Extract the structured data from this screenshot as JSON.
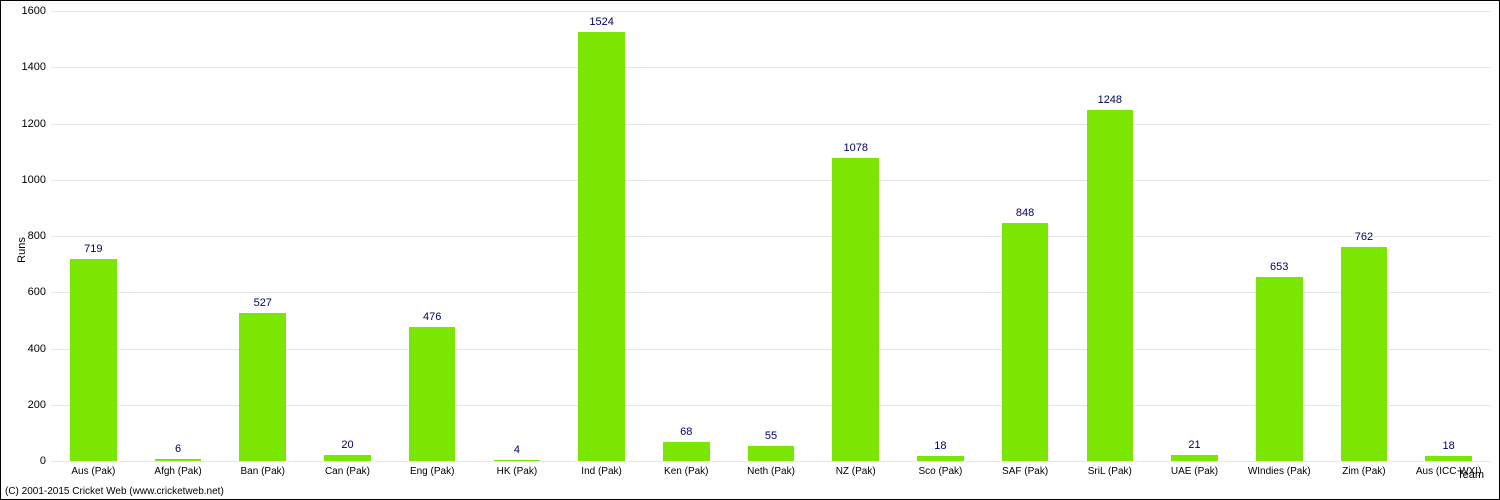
{
  "chart": {
    "type": "bar",
    "ylabel": "Runs",
    "xlabel": "Team",
    "label_fontsize": 11,
    "ylim": [
      0,
      1600
    ],
    "ytick_step": 200,
    "yticks": [
      0,
      200,
      400,
      600,
      800,
      1000,
      1200,
      1400,
      1600
    ],
    "background_color": "#ffffff",
    "grid_color": "#e7e7e7",
    "bar_color": "#7ae602",
    "bar_label_color": "#000066",
    "bar_label_fontsize": 11,
    "bar_width_ratio": 0.55,
    "categories": [
      "Aus (Pak)",
      "Afgh (Pak)",
      "Ban (Pak)",
      "Can (Pak)",
      "Eng (Pak)",
      "HK (Pak)",
      "Ind (Pak)",
      "Ken (Pak)",
      "Neth (Pak)",
      "NZ (Pak)",
      "Sco (Pak)",
      "SAF (Pak)",
      "SriL (Pak)",
      "UAE (Pak)",
      "WIndies (Pak)",
      "Zim (Pak)",
      "Aus (ICC WXI)"
    ],
    "values": [
      719,
      6,
      527,
      20,
      476,
      4,
      1524,
      68,
      55,
      1078,
      18,
      848,
      1248,
      21,
      653,
      762,
      18
    ]
  },
  "copyright": "(C) 2001-2015 Cricket Web (www.cricketweb.net)"
}
